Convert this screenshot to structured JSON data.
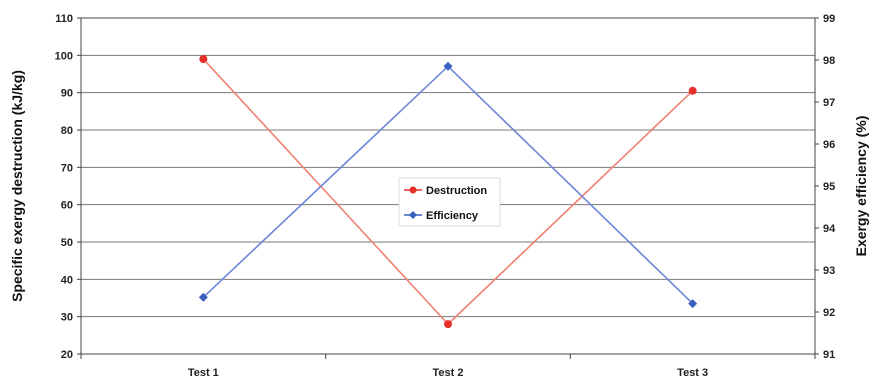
{
  "chart_data": {
    "type": "line",
    "categories": [
      "Test 1",
      "Test 2",
      "Test 3"
    ],
    "series": [
      {
        "name": "Destruction",
        "axis": "left",
        "color": "#e8302a",
        "line_color": "#f08070",
        "marker": "circle",
        "values": [
          99,
          28,
          90.5
        ]
      },
      {
        "name": "Efficiency",
        "axis": "right",
        "color": "#3a5fc0",
        "line_color": "#6f86d8",
        "marker": "diamond",
        "values": [
          92.35,
          97.85,
          92.2
        ]
      }
    ],
    "ylabel": "Specific exergy destruction (kJ/kg)",
    "ylabel_right": "Exergy efficiency (%)",
    "ylim": [
      20,
      110
    ],
    "ylim_right": [
      91,
      99
    ],
    "yticks": [
      "20",
      "30",
      "40",
      "50",
      "60",
      "70",
      "80",
      "90",
      "100",
      "110"
    ],
    "yticks_right": [
      "91",
      "92",
      "93",
      "94",
      "95",
      "96",
      "97",
      "98",
      "99"
    ],
    "grid": true,
    "legend_position": "center"
  }
}
